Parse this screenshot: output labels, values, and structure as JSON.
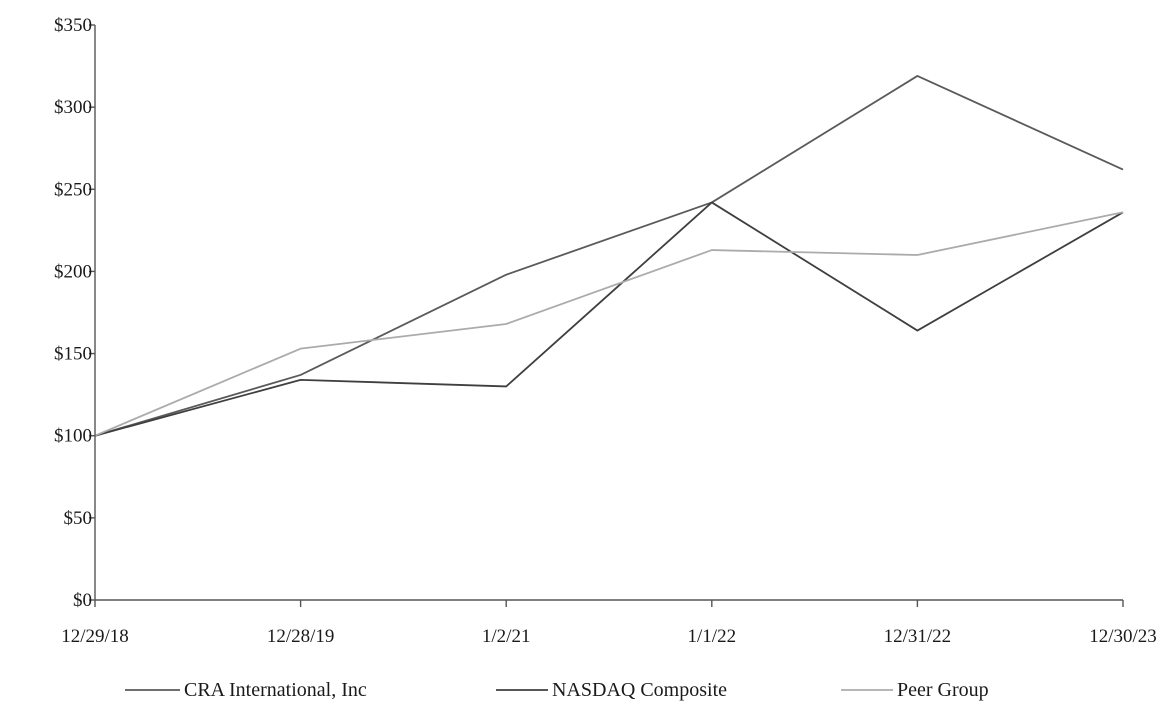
{
  "chart_data": {
    "type": "line",
    "title": "",
    "xlabel": "",
    "ylabel": "",
    "categories": [
      "12/29/18",
      "12/28/19",
      "1/2/21",
      "1/1/22",
      "12/31/22",
      "12/30/23"
    ],
    "y_tick_labels": [
      "$0",
      "$50",
      "$100",
      "$150",
      "$200",
      "$250",
      "$300",
      "$350"
    ],
    "y_ticks": [
      0,
      50,
      100,
      150,
      200,
      250,
      300,
      350
    ],
    "ylim": [
      0,
      350
    ],
    "grid": false,
    "legend_position": "bottom",
    "series": [
      {
        "name": "CRA International, Inc",
        "color": "#5a5a5a",
        "values": [
          100,
          137,
          198,
          242,
          319,
          262
        ]
      },
      {
        "name": "NASDAQ Composite",
        "color": "#3f3f3f",
        "values": [
          100,
          134,
          130,
          242,
          164,
          236
        ]
      },
      {
        "name": "Peer Group",
        "color": "#ababab",
        "values": [
          100,
          153,
          168,
          213,
          210,
          236
        ]
      }
    ]
  }
}
